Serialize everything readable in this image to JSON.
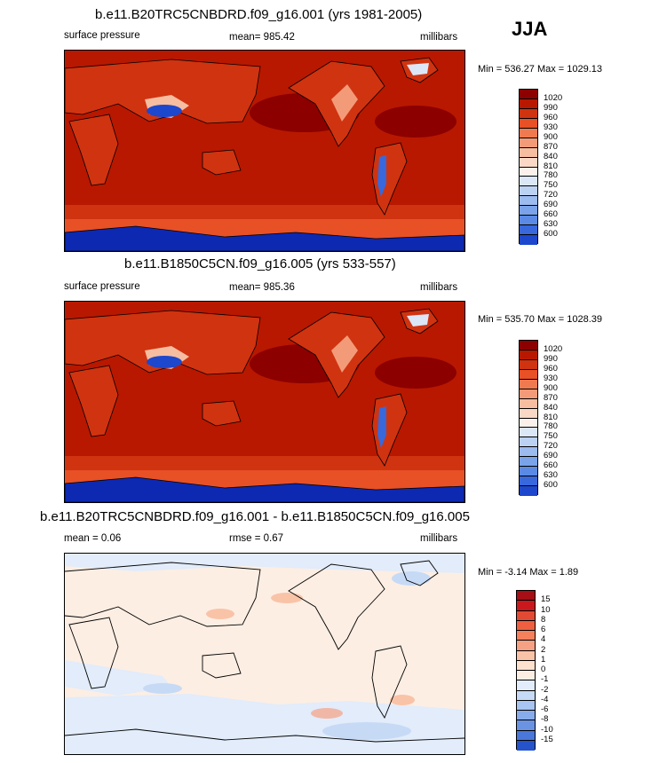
{
  "season": "JJA",
  "colors": {
    "abs_scale": [
      "#8c0000",
      "#b81800",
      "#d03310",
      "#e85026",
      "#ef7a50",
      "#f39b78",
      "#f7bda0",
      "#fad8c6",
      "#fcf0ea",
      "#dbe6f7",
      "#bcd2f3",
      "#9cbbef",
      "#7aa3ea",
      "#5a8ae4",
      "#3868db",
      "#1d47cc",
      "#0d29b2",
      "#061486",
      "#020a60"
    ],
    "diff_scale": [
      "#a50f15",
      "#cb181d",
      "#e34a33",
      "#f06040",
      "#f4805c",
      "#f6a183",
      "#f9c3a8",
      "#fde1cf",
      "#fdeee3",
      "#e2ecfa",
      "#c6daf6",
      "#a8c4f1",
      "#88aceb",
      "#6a93e4",
      "#4a78da",
      "#2553cc",
      "#0c2eb0",
      "#03138a"
    ]
  },
  "panels": [
    {
      "title": "b.e11.B20TRC5CNBDRD.f09_g16.001 (yrs 1981-2005)",
      "left_label": "surface pressure",
      "mean_text": "mean= 985.42",
      "units": "millibars",
      "minmax": "Min = 536.27 Max = 1029.13",
      "cbar_labels": [
        "1020",
        "990",
        "960",
        "930",
        "900",
        "870",
        "840",
        "810",
        "780",
        "750",
        "720",
        "690",
        "660",
        "630",
        "600"
      ]
    },
    {
      "title": "b.e11.B1850C5CN.f09_g16.005 (yrs 533-557)",
      "left_label": "surface pressure",
      "mean_text": "mean= 985.36",
      "units": "millibars",
      "minmax": "Min = 535.70 Max = 1028.39",
      "cbar_labels": [
        "1020",
        "990",
        "960",
        "930",
        "900",
        "870",
        "840",
        "810",
        "780",
        "750",
        "720",
        "690",
        "660",
        "630",
        "600"
      ]
    },
    {
      "title": "b.e11.B20TRC5CNBDRD.f09_g16.001 - b.e11.B1850C5CN.f09_g16.005",
      "left_label": "mean =   0.06",
      "mean_text": "rmse =   0.67",
      "units": "millibars",
      "minmax": "Min =  -3.14 Max =   1.89",
      "cbar_labels": [
        "15",
        "10",
        "8",
        "6",
        "4",
        "2",
        "1",
        "0",
        "-1",
        "-2",
        "-4",
        "-6",
        "-8",
        "-10",
        "-15"
      ]
    }
  ],
  "chart_data": [
    {
      "type": "heatmap",
      "title": "b.e11.B20TRC5CNBDRD.f09_g16.001 (yrs 1981-2005)",
      "variable": "surface pressure",
      "units": "millibars",
      "mean": 985.42,
      "min": 536.27,
      "max": 1029.13,
      "levels": [
        600,
        630,
        660,
        690,
        720,
        750,
        780,
        810,
        840,
        870,
        900,
        930,
        960,
        990,
        1020
      ]
    },
    {
      "type": "heatmap",
      "title": "b.e11.B1850C5CN.f09_g16.005 (yrs 533-557)",
      "variable": "surface pressure",
      "units": "millibars",
      "mean": 985.36,
      "min": 535.7,
      "max": 1028.39,
      "levels": [
        600,
        630,
        660,
        690,
        720,
        750,
        780,
        810,
        840,
        870,
        900,
        930,
        960,
        990,
        1020
      ]
    },
    {
      "type": "heatmap",
      "title": "b.e11.B20TRC5CNBDRD.f09_g16.001 - b.e11.B1850C5CN.f09_g16.005",
      "variable": "surface pressure difference",
      "units": "millibars",
      "mean": 0.06,
      "rmse": 0.67,
      "min": -3.14,
      "max": 1.89,
      "levels": [
        -15,
        -10,
        -8,
        -6,
        -4,
        -2,
        -1,
        0,
        1,
        2,
        4,
        6,
        8,
        10,
        15
      ]
    }
  ]
}
